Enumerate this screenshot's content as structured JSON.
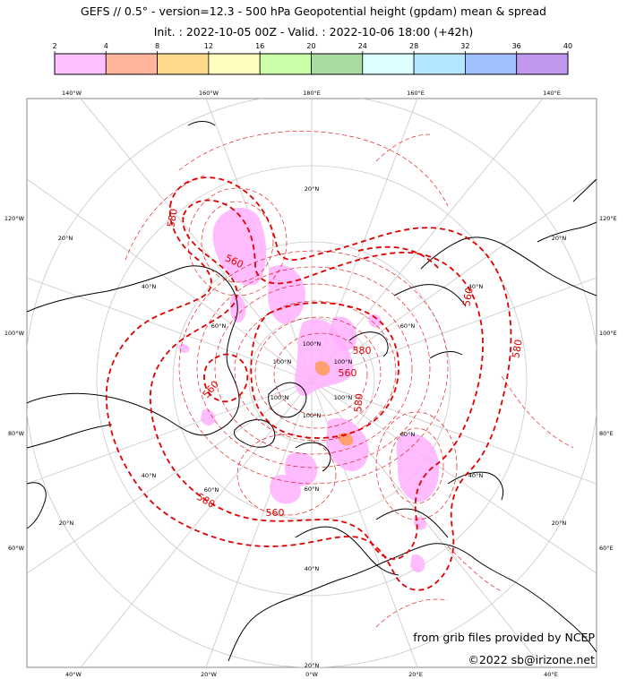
{
  "title_line1": "GEFS // 0.5° - version=12.3 - 500 hPa Geopotential height (gpdam) mean & spread",
  "title_line2": "Init. : 2022-10-05 00Z - Valid. : 2022-10-06 18:00 (+42h)",
  "colorbar": {
    "ticks": [
      "2",
      "4",
      "8",
      "12",
      "16",
      "20",
      "24",
      "28",
      "32",
      "36",
      "40"
    ],
    "colors": [
      "#ffc0ff",
      "#ffb49b",
      "#ffd98c",
      "#ffffc0",
      "#ccffaa",
      "#a9dca0",
      "#dcffff",
      "#b4e6ff",
      "#a0c0ff",
      "#c098f0"
    ]
  },
  "map": {
    "projection": "polar stereographic (north pole)",
    "top_lon_labels": [
      "140°W",
      "160°W",
      "180°E",
      "160°E",
      "140°E"
    ],
    "bottom_lon_labels": [
      "40°W",
      "20°W",
      "0°W",
      "20°E",
      "40°E"
    ],
    "left_lon_labels": [
      "120°W",
      "100°W",
      "80°W",
      "60°W"
    ],
    "right_lon_labels": [
      "120°E",
      "100°E",
      "80°E",
      "60°E"
    ],
    "lat_labels": [
      "20°N",
      "40°N",
      "60°N",
      "20°N",
      "40°N",
      "60°N",
      "20°N",
      "40°N",
      "60°N",
      "100°N",
      "100°N",
      "100°N",
      "100°N",
      "100°N",
      "100°N",
      "60°N",
      "40°N",
      "20°N",
      "20°N",
      "40°N",
      "60°N",
      "20°N"
    ],
    "contour_labels": [
      "580",
      "560",
      "560",
      "560",
      "580",
      "580",
      "560",
      "580",
      "560",
      "580"
    ],
    "contour_color": "#e00000",
    "spread_color": "#ffb0ff",
    "spread_high_color": "#ffa070"
  },
  "credit_line1": "from grib files provided by NCEP",
  "credit_line2": "©2022 sb@irizone.net"
}
